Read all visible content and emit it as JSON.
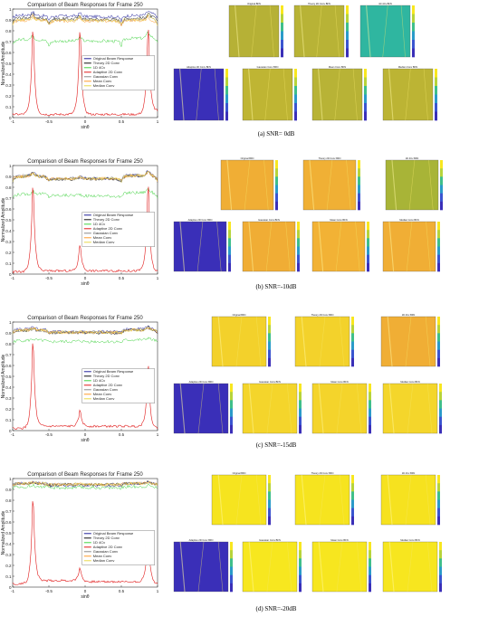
{
  "figure": {
    "panels": [
      {
        "caption": "(a) SNR= 0dB",
        "plot_title": "Comparison of Beam Responses for Frame 250",
        "ylabel": "Normalized Amplitude",
        "xlabel": "sinθ",
        "yticks": [
          "0",
          "0.1",
          "0.2",
          "0.3",
          "0.4",
          "0.5",
          "0.6",
          "0.7",
          "0.8",
          "0.9",
          "1"
        ],
        "xticks": [
          "-1",
          "-0.5",
          "0",
          "0.5",
          "1"
        ],
        "legend": [
          "Original Beam Response",
          "Theory 2D Conv",
          "1D 4Cv",
          "Adaptive 2D Conv",
          "Gaussian Conv",
          "Mean Conv",
          "Median Conv"
        ],
        "tile_titles": [
          "Original BFN",
          "Theory 2D Conv BFN",
          "1D 4Cv BFN",
          "Adaptive 2D Conv BFN",
          "Gaussian Conv BFN",
          "Mean Conv BFN",
          "Median Conv BFN"
        ],
        "tile_colors": [
          "#b6b136",
          "#b8b336",
          "#2fb6a0",
          "#3a2fb8",
          "#bfb533",
          "#b8b336",
          "#bcb434"
        ]
      },
      {
        "caption": "(b) SNR=-10dB",
        "plot_title": "Comparison of Beam Responses for Frame 250",
        "ylabel": "Normalized Amplitude",
        "xlabel": "sinθ",
        "yticks": [
          "0",
          "0.1",
          "0.2",
          "0.3",
          "0.4",
          "0.5",
          "0.6",
          "0.7",
          "0.8",
          "0.9",
          "1"
        ],
        "xticks": [
          "-1",
          "-0.5",
          "0",
          "0.5",
          "1"
        ],
        "legend": [
          "Original Beam Response",
          "Theory 2D Conv",
          "1D 4Cv",
          "Adaptive 2D Conv",
          "Gaussian Conv",
          "Mean Conv",
          "Median Conv"
        ],
        "tile_titles": [
          "Original BFN",
          "Theory 2D Conv BFN",
          "1D 4Cv BFN",
          "Adaptive 2D Conv BFN",
          "Gaussian Conv BFN",
          "Mean Conv BFN",
          "Median Conv BFN"
        ],
        "tile_colors": [
          "#f0ae35",
          "#f0b035",
          "#a8b437",
          "#3a2fb8",
          "#f0ad35",
          "#f2b235",
          "#f0ae35"
        ]
      },
      {
        "caption": "(c) SNR=-15dB",
        "plot_title": "Comparison of Beam Responses for Frame 250",
        "ylabel": "Normalized Amplitude",
        "xlabel": "sinθ",
        "yticks": [
          "0",
          "0.1",
          "0.2",
          "0.3",
          "0.4",
          "0.5",
          "0.6",
          "0.7",
          "0.8",
          "0.9",
          "1"
        ],
        "xticks": [
          "-1",
          "-0.5",
          "0",
          "0.5",
          "1"
        ],
        "legend": [
          "Original Beam Response",
          "Theory 2D Conv",
          "1D 4Cv",
          "Adaptive 2D Conv",
          "Gaussian Conv",
          "Mean Conv",
          "Median Conv"
        ],
        "tile_titles": [
          "Original BFN",
          "Theory 2D Conv BFN",
          "1D 4Cv BFN",
          "Adaptive 2D Conv BFN",
          "Gaussian Conv BFN",
          "Mean Conv BFN",
          "Median Conv BFN"
        ],
        "tile_colors": [
          "#f3d12b",
          "#f3d22b",
          "#f0ae35",
          "#3a2fb8",
          "#f4d52b",
          "#f4d42b",
          "#f4d62b"
        ]
      },
      {
        "caption": "(d) SNR=-20dB",
        "plot_title": "Comparison of Beam Responses for Frame 250",
        "ylabel": "Normalized Amplitude",
        "xlabel": "sinθ",
        "yticks": [
          "0",
          "0.1",
          "0.2",
          "0.3",
          "0.4",
          "0.5",
          "0.6",
          "0.7",
          "0.8",
          "0.9",
          "1"
        ],
        "xticks": [
          "-1",
          "-0.5",
          "0",
          "0.5",
          "1"
        ],
        "legend": [
          "Original Beam Response",
          "Theory 2D Conv",
          "1D 4Cv",
          "Adaptive 2D Conv",
          "Gaussian Conv",
          "Mean Conv",
          "Median Conv"
        ],
        "tile_titles": [
          "Original BFN",
          "Theory 2D Conv BFN",
          "1D 4Cv BFN",
          "Adaptive 2D Conv BFN",
          "Gaussian Conv BFN",
          "Mean Conv BFN",
          "Median Conv BFN"
        ],
        "tile_colors": [
          "#f6e41f",
          "#f6e41f",
          "#f6e21f",
          "#3a2fb8",
          "#f7e71f",
          "#f7e61f",
          "#f7e61f"
        ]
      }
    ]
  },
  "chart_data": [
    {
      "type": "line",
      "title": "Comparison of Beam Responses for Frame 250",
      "xlabel": "sinθ",
      "ylabel": "Normalized Amplitude",
      "xlim": [
        -1,
        1
      ],
      "ylim": [
        0,
        1
      ],
      "legend_position": "right",
      "series": [
        {
          "name": "Original Beam Response",
          "x": [
            -1,
            -0.72,
            -0.5,
            -0.07,
            0.5,
            0.87,
            1
          ],
          "y": [
            0.91,
            0.98,
            0.9,
            0.97,
            0.89,
            0.99,
            0.92
          ]
        },
        {
          "name": "Theory 2D Conv",
          "x": [
            -1,
            -0.72,
            -0.5,
            -0.07,
            0.5,
            0.87,
            1
          ],
          "y": [
            0.88,
            0.96,
            0.87,
            0.95,
            0.86,
            0.97,
            0.88
          ]
        },
        {
          "name": "1D 4Cv",
          "x": [
            -1,
            -0.72,
            -0.5,
            -0.07,
            0.5,
            0.87,
            1
          ],
          "y": [
            0.67,
            0.77,
            0.66,
            0.75,
            0.66,
            0.8,
            0.68
          ]
        },
        {
          "name": "Adaptive 2D Conv",
          "x": [
            -1,
            -0.72,
            -0.5,
            -0.07,
            0.5,
            0.87,
            1
          ],
          "y": [
            0.03,
            0.97,
            0.03,
            0.95,
            0.03,
            0.97,
            0.06
          ]
        },
        {
          "name": "Gaussian Conv",
          "x": [
            -1,
            -0.72,
            -0.5,
            -0.07,
            0.5,
            0.87,
            1
          ],
          "y": [
            0.86,
            0.95,
            0.86,
            0.94,
            0.86,
            0.95,
            0.86
          ]
        },
        {
          "name": "Mean Conv",
          "x": [
            -1,
            -0.72,
            -0.5,
            -0.07,
            0.5,
            0.87,
            1
          ],
          "y": [
            0.85,
            0.94,
            0.85,
            0.93,
            0.85,
            0.94,
            0.85
          ]
        },
        {
          "name": "Median Conv",
          "x": [
            -1,
            -0.72,
            -0.5,
            -0.07,
            0.5,
            0.87,
            1
          ],
          "y": [
            0.86,
            0.94,
            0.86,
            0.93,
            0.86,
            0.95,
            0.86
          ]
        }
      ]
    },
    {
      "type": "line",
      "title": "Comparison of Beam Responses for Frame 250",
      "xlabel": "sinθ",
      "ylabel": "Normalized Amplitude",
      "xlim": [
        -1,
        1
      ],
      "ylim": [
        0,
        1
      ],
      "legend_position": "right",
      "series": [
        {
          "name": "Original Beam Response",
          "x": [
            -1,
            -0.72,
            -0.5,
            -0.07,
            0.5,
            0.87,
            1
          ],
          "y": [
            0.85,
            0.96,
            0.85,
            0.91,
            0.85,
            0.97,
            0.85
          ]
        },
        {
          "name": "Theory 2D Conv",
          "x": [
            -1,
            -0.72,
            -0.5,
            -0.07,
            0.5,
            0.87,
            1
          ],
          "y": [
            0.85,
            0.95,
            0.85,
            0.9,
            0.85,
            0.96,
            0.85
          ]
        },
        {
          "name": "1D 4Cv",
          "x": [
            -1,
            -0.72,
            -0.5,
            -0.07,
            0.5,
            0.87,
            1
          ],
          "y": [
            0.7,
            0.77,
            0.71,
            0.74,
            0.7,
            0.8,
            0.7
          ]
        },
        {
          "name": "Adaptive 2D Conv",
          "x": [
            -1,
            -0.72,
            -0.5,
            -0.07,
            0.5,
            0.87,
            1
          ],
          "y": [
            0.02,
            0.97,
            0.03,
            0.32,
            0.03,
            0.97,
            0.02
          ]
        },
        {
          "name": "Gaussian Conv",
          "x": [
            -1,
            -0.72,
            -0.5,
            -0.07,
            0.5,
            0.87,
            1
          ],
          "y": [
            0.86,
            0.95,
            0.86,
            0.9,
            0.86,
            0.96,
            0.86
          ]
        },
        {
          "name": "Mean Conv",
          "x": [
            -1,
            -0.72,
            -0.5,
            -0.07,
            0.5,
            0.87,
            1
          ],
          "y": [
            0.86,
            0.94,
            0.86,
            0.9,
            0.86,
            0.95,
            0.86
          ]
        },
        {
          "name": "Median Conv",
          "x": [
            -1,
            -0.72,
            -0.5,
            -0.07,
            0.5,
            0.87,
            1
          ],
          "y": [
            0.86,
            0.94,
            0.86,
            0.9,
            0.86,
            0.95,
            0.86
          ]
        }
      ]
    },
    {
      "type": "line",
      "title": "Comparison of Beam Responses for Frame 250",
      "xlabel": "sinθ",
      "ylabel": "Normalized Amplitude",
      "xlim": [
        -1,
        1
      ],
      "ylim": [
        0,
        1
      ],
      "legend_position": "right",
      "series": [
        {
          "name": "Original Beam Response",
          "x": [
            -1,
            -0.72,
            -0.5,
            -0.07,
            0.5,
            0.87,
            1
          ],
          "y": [
            0.9,
            0.97,
            0.9,
            0.92,
            0.9,
            0.97,
            0.9
          ]
        },
        {
          "name": "Theory 2D Conv",
          "x": [
            -1,
            -0.72,
            -0.5,
            -0.07,
            0.5,
            0.87,
            1
          ],
          "y": [
            0.89,
            0.95,
            0.89,
            0.91,
            0.89,
            0.96,
            0.89
          ]
        },
        {
          "name": "1D 4Cv",
          "x": [
            -1,
            -0.72,
            -0.5,
            -0.07,
            0.5,
            0.87,
            1
          ],
          "y": [
            0.81,
            0.85,
            0.81,
            0.83,
            0.81,
            0.86,
            0.81
          ]
        },
        {
          "name": "Adaptive 2D Conv",
          "x": [
            -1,
            -0.72,
            -0.5,
            -0.07,
            0.5,
            0.87,
            1
          ],
          "y": [
            0.02,
            0.97,
            0.04,
            0.21,
            0.04,
            0.71,
            0.02
          ]
        },
        {
          "name": "Gaussian Conv",
          "x": [
            -1,
            -0.72,
            -0.5,
            -0.07,
            0.5,
            0.87,
            1
          ],
          "y": [
            0.9,
            0.95,
            0.9,
            0.91,
            0.9,
            0.96,
            0.9
          ]
        },
        {
          "name": "Mean Conv",
          "x": [
            -1,
            -0.72,
            -0.5,
            -0.07,
            0.5,
            0.87,
            1
          ],
          "y": [
            0.9,
            0.95,
            0.9,
            0.91,
            0.9,
            0.95,
            0.9
          ]
        },
        {
          "name": "Median Conv",
          "x": [
            -1,
            -0.72,
            -0.5,
            -0.07,
            0.5,
            0.87,
            1
          ],
          "y": [
            0.9,
            0.95,
            0.9,
            0.91,
            0.9,
            0.95,
            0.9
          ]
        }
      ]
    },
    {
      "type": "line",
      "title": "Comparison of Beam Responses for Frame 250",
      "xlabel": "sinθ",
      "ylabel": "Normalized Amplitude",
      "xlim": [
        -1,
        1
      ],
      "ylim": [
        0,
        1
      ],
      "legend_position": "right",
      "series": [
        {
          "name": "Original Beam Response",
          "x": [
            -1,
            -0.72,
            -0.5,
            -0.07,
            0.5,
            0.87,
            1
          ],
          "y": [
            0.93,
            0.98,
            0.93,
            0.94,
            0.93,
            0.98,
            0.93
          ]
        },
        {
          "name": "Theory 2D Conv",
          "x": [
            -1,
            -0.72,
            -0.5,
            -0.07,
            0.5,
            0.87,
            1
          ],
          "y": [
            0.94,
            0.97,
            0.94,
            0.95,
            0.94,
            0.97,
            0.94
          ]
        },
        {
          "name": "1D 4Cv",
          "x": [
            -1,
            -0.72,
            -0.5,
            -0.07,
            0.5,
            0.87,
            1
          ],
          "y": [
            0.91,
            0.94,
            0.91,
            0.92,
            0.91,
            0.94,
            0.91
          ]
        },
        {
          "name": "Adaptive 2D Conv",
          "x": [
            -1,
            -0.72,
            -0.5,
            -0.07,
            0.5,
            0.87,
            1
          ],
          "y": [
            0.03,
            0.97,
            0.06,
            0.2,
            0.05,
            0.6,
            0.03
          ]
        },
        {
          "name": "Gaussian Conv",
          "x": [
            -1,
            -0.72,
            -0.5,
            -0.07,
            0.5,
            0.87,
            1
          ],
          "y": [
            0.94,
            0.97,
            0.94,
            0.95,
            0.94,
            0.97,
            0.94
          ]
        },
        {
          "name": "Mean Conv",
          "x": [
            -1,
            -0.72,
            -0.5,
            -0.07,
            0.5,
            0.87,
            1
          ],
          "y": [
            0.94,
            0.97,
            0.94,
            0.95,
            0.94,
            0.97,
            0.94
          ]
        },
        {
          "name": "Median Conv",
          "x": [
            -1,
            -0.72,
            -0.5,
            -0.07,
            0.5,
            0.87,
            1
          ],
          "y": [
            0.94,
            0.97,
            0.94,
            0.95,
            0.94,
            0.97,
            0.94
          ]
        }
      ]
    }
  ],
  "series_colors": [
    "#1f1f9a",
    "#111111",
    "#3fd23f",
    "#e01818",
    "#8a8a8a",
    "#ff9b2a",
    "#e8d84a"
  ]
}
